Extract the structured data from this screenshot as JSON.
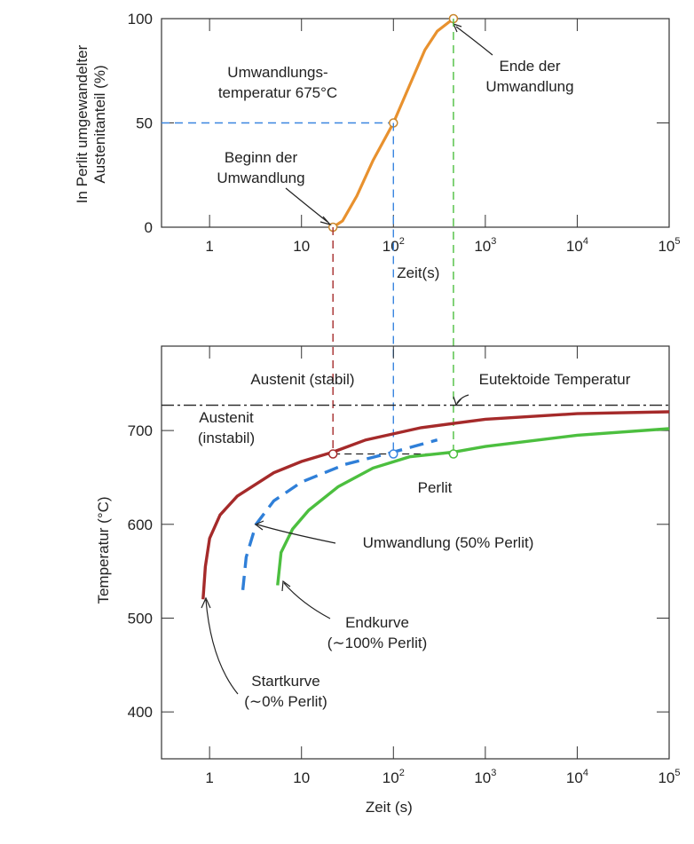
{
  "chart_data": [
    {
      "type": "line",
      "xscale": "log",
      "xlim": [
        0.3,
        100000
      ],
      "ylim": [
        0,
        100
      ],
      "xlabel": "Zeit(s)",
      "ylabel_lines": [
        "In Perlit umgewandelter",
        "Austenitanteil (%)"
      ],
      "x_ticks": [
        1,
        10,
        100,
        1000,
        10000,
        100000
      ],
      "x_tick_labels": [
        {
          "base": "1",
          "exp": ""
        },
        {
          "base": "10",
          "exp": ""
        },
        {
          "base": "10",
          "exp": "2"
        },
        {
          "base": "10",
          "exp": "3"
        },
        {
          "base": "10",
          "exp": "4"
        },
        {
          "base": "10",
          "exp": "5"
        }
      ],
      "y_ticks": [
        0,
        50,
        100
      ],
      "y_tick_labels": [
        "0",
        "50",
        "100"
      ],
      "curve": {
        "color": "#E8912E",
        "points": [
          [
            22,
            0
          ],
          [
            28,
            3
          ],
          [
            40,
            15
          ],
          [
            60,
            32
          ],
          [
            100,
            50
          ],
          [
            150,
            68
          ],
          [
            220,
            85
          ],
          [
            300,
            94
          ],
          [
            450,
            100
          ]
        ]
      },
      "markers": [
        [
          22,
          0
        ],
        [
          100,
          50
        ],
        [
          450,
          100
        ]
      ],
      "annotations": {
        "temperature_lines": [
          "Umwandlungs-",
          "temperatur 675°C"
        ],
        "begin_lines": [
          "Beginn der",
          "Umwandlung"
        ],
        "end_lines": [
          "Ende der",
          "Umwandlung"
        ]
      }
    },
    {
      "type": "line",
      "xscale": "log",
      "xlim": [
        0.3,
        100000
      ],
      "ylim": [
        350,
        790
      ],
      "xlabel": "Zeit (s)",
      "ylabel": "Temperatur (°C)",
      "x_ticks": [
        1,
        10,
        100,
        1000,
        10000,
        100000
      ],
      "x_tick_labels": [
        {
          "base": "1",
          "exp": ""
        },
        {
          "base": "10",
          "exp": ""
        },
        {
          "base": "10",
          "exp": "2"
        },
        {
          "base": "10",
          "exp": "3"
        },
        {
          "base": "10",
          "exp": "4"
        },
        {
          "base": "10",
          "exp": "5"
        }
      ],
      "y_ticks": [
        400,
        500,
        600,
        700
      ],
      "y_tick_labels": [
        "400",
        "500",
        "600",
        "700"
      ],
      "eutectoid_temperature": 727,
      "isotherm_temperature": 675,
      "series": [
        {
          "key": "start",
          "color": "#A52A2A",
          "dashed": false,
          "points": [
            [
              0.85,
              520
            ],
            [
              0.9,
              555
            ],
            [
              1.0,
              585
            ],
            [
              1.3,
              610
            ],
            [
              2,
              630
            ],
            [
              5,
              655
            ],
            [
              10,
              667
            ],
            [
              22,
              677
            ],
            [
              50,
              690
            ],
            [
              200,
              703
            ],
            [
              1000,
              712
            ],
            [
              10000,
              718
            ],
            [
              100000,
              720
            ]
          ]
        },
        {
          "key": "fifty",
          "color": "#2F7FD8",
          "dashed": true,
          "points": [
            [
              2.3,
              530
            ],
            [
              2.5,
              565
            ],
            [
              3.2,
              600
            ],
            [
              5,
              625
            ],
            [
              10,
              645
            ],
            [
              30,
              664
            ],
            [
              100,
              677
            ],
            [
              300,
              690
            ]
          ]
        },
        {
          "key": "end",
          "color": "#4CBF3F",
          "dashed": false,
          "points": [
            [
              5.5,
              535
            ],
            [
              6,
              570
            ],
            [
              8,
              595
            ],
            [
              12,
              615
            ],
            [
              25,
              640
            ],
            [
              60,
              660
            ],
            [
              150,
              672
            ],
            [
              450,
              677
            ],
            [
              1000,
              683
            ],
            [
              10000,
              695
            ],
            [
              100000,
              702
            ]
          ]
        }
      ],
      "markers": [
        [
          22,
          675
        ],
        [
          100,
          675
        ],
        [
          450,
          675
        ]
      ],
      "labels": {
        "austenite_stable": "Austenit (stabil)",
        "eutectoid": "Eutektoide Temperatur",
        "austenite_unstable_lines": [
          "Austenit",
          "(instabil)"
        ],
        "perlite": "Perlit",
        "fifty": "Umwandlung (50% Perlit)",
        "end_lines": [
          "Endkurve",
          "(∼100% Perlit)"
        ],
        "start_lines": [
          "Startkurve",
          "(∼0% Perlit)"
        ]
      }
    }
  ]
}
